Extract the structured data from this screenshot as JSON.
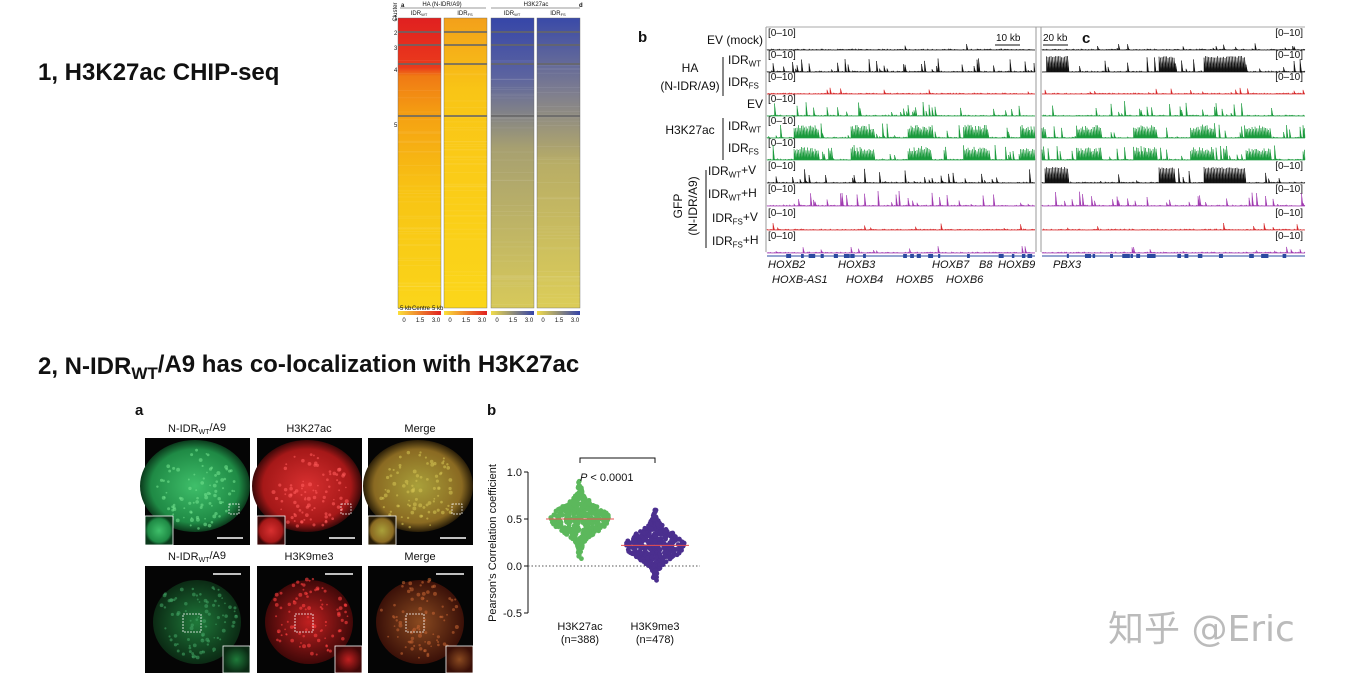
{
  "section1": {
    "title": "1, H3K27ac CHIP-seq"
  },
  "heatmap": {
    "panels": [
      "a",
      "d"
    ],
    "groups": [
      "HA (N-IDR/A9)",
      "H3K27ac"
    ],
    "columns": [
      {
        "main": "IDR",
        "sub": "WT"
      },
      {
        "main": "IDR",
        "sub": "FS"
      },
      {
        "main": "IDR",
        "sub": "WT"
      },
      {
        "main": "IDR",
        "sub": "FS"
      }
    ],
    "cluster_axis": "Cluster",
    "clusters": [
      "1",
      "2",
      "3",
      "4",
      "5"
    ],
    "x_axis": [
      "-5 kb",
      "Centre",
      "5 kb"
    ],
    "colorbar_ticks": [
      0,
      1.5,
      {
        "value": 3,
        "label": "3.0"
      }
    ]
  },
  "tracks": {
    "panel_b": "b",
    "panel_c": "c",
    "scale_b": "10 kb",
    "scale_c": "20 kb",
    "groups": [
      {
        "label": [
          "HA",
          "(N-IDR/A9)"
        ]
      },
      {
        "label": [
          "H3K27ac"
        ]
      },
      {
        "label": [
          "GFP",
          "(N-IDR/A9)"
        ]
      }
    ],
    "rows": [
      {
        "label": {
          "main": "EV (mock)"
        },
        "range": "[0–10]",
        "range_c": true,
        "color": "#111111"
      },
      {
        "label": {
          "main": "IDR",
          "sub": "WT"
        },
        "range": "[0–10]",
        "range_c": true,
        "color": "#111111"
      },
      {
        "label": {
          "main": "IDR",
          "sub": "FS"
        },
        "range": "[0–10]",
        "range_c": true,
        "color": "#d62728"
      },
      {
        "label": {
          "main": "EV"
        },
        "range": "[0–10]",
        "range_c": false,
        "color": "#1a9a3c"
      },
      {
        "label": {
          "main": "IDR",
          "sub": "WT"
        },
        "range": "[0–10]",
        "range_c": false,
        "color": "#1a9a3c"
      },
      {
        "label": {
          "main": "IDR",
          "sub": "FS"
        },
        "range": "[0–10]",
        "range_c": false,
        "color": "#1a9a3c"
      },
      {
        "label": {
          "main": "IDR",
          "sub": "WT",
          "suffix": "+V"
        },
        "range": "[0–10]",
        "range_c": true,
        "color": "#111111"
      },
      {
        "label": {
          "main": "IDR",
          "sub": "WT",
          "suffix": "+H"
        },
        "range": "[0–10]",
        "range_c": true,
        "color": "#a03ab0"
      },
      {
        "label": {
          "main": "IDR",
          "sub": "FS",
          "suffix": "+V"
        },
        "range": "[0–10]",
        "range_c": true,
        "color": "#d62728"
      },
      {
        "label": {
          "main": "IDR",
          "sub": "FS",
          "suffix": "+H"
        },
        "range": "[0–10]",
        "range_c": true,
        "color": "#a03ab0"
      }
    ],
    "genes": [
      "HOXB2",
      "HOXB3",
      "HOXB7",
      "B8",
      "HOXB9",
      "PBX3",
      "HOXB-AS1",
      "HOXB4",
      "HOXB5",
      "HOXB6"
    ]
  },
  "section2": {
    "pre": "2, N-IDR",
    "sub": "WT",
    "post": "/A9 has co-localization with H3K27ac"
  },
  "microscopy": {
    "panel": "a",
    "rows": [
      [
        {
          "pre": "N-IDR",
          "sub": "WT",
          "post": "/A9"
        },
        {
          "pre": "H3K27ac"
        },
        {
          "pre": "Merge"
        }
      ],
      [
        {
          "pre": "N-IDR",
          "sub": "WT",
          "post": "/A9"
        },
        {
          "pre": "H3K9me3"
        },
        {
          "pre": "Merge"
        }
      ]
    ]
  },
  "correlation": {
    "type": "swarm",
    "panel": "b",
    "y_label": "Pearson's Correlation coefficient",
    "ylim": [
      -0.5,
      1.0
    ],
    "yticks": [
      {
        "value": -0.5,
        "label": "-0.5"
      },
      {
        "value": 0,
        "label": "0.0"
      },
      {
        "value": 0.5,
        "label": "0.5"
      },
      {
        "value": 1,
        "label": "1.0"
      }
    ],
    "categories": [
      "H3K27ac",
      "H3K9me3"
    ],
    "n_labels": [
      "(n=388)",
      "(n=478)"
    ],
    "colors": [
      "#5cb85c",
      "#4b2f8f"
    ],
    "medians": [
      0.5,
      0.22
    ],
    "annotation": {
      "p": "P",
      "text": " < 0.0001"
    }
  },
  "watermark": "知乎 @Eric"
}
